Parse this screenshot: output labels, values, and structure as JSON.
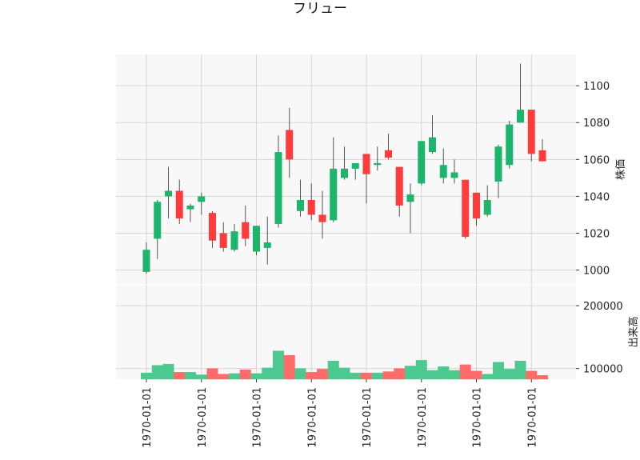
{
  "chart_data": {
    "type": "candlestick",
    "title": "フリュー",
    "price_axis_label": "株価",
    "volume_axis_label": "出来高",
    "price_ticks": [
      1000,
      1020,
      1040,
      1060,
      1080,
      1100
    ],
    "price_ylim": [
      992,
      1117
    ],
    "volume_ticks": [
      100000,
      200000
    ],
    "volume_tick_labels": [
      "100000",
      "200000"
    ],
    "volume_ylim": [
      83000,
      232000
    ],
    "x_tick_label": "1970-01-01",
    "x_tick_positions": [
      0,
      5,
      10,
      15,
      20,
      25,
      30,
      35
    ],
    "grid": true,
    "up_color": "#1db46c",
    "down_color": "#ff3b3b",
    "volume_up_color": "#4cc98e",
    "volume_down_color": "#ff6b6b",
    "candles": [
      {
        "open": 999,
        "high": 1015,
        "low": 998,
        "close": 1011,
        "volume": 93000
      },
      {
        "open": 1017,
        "high": 1038,
        "low": 1006,
        "close": 1037,
        "volume": 105000
      },
      {
        "open": 1040,
        "high": 1056,
        "low": 1028,
        "close": 1043,
        "volume": 107000
      },
      {
        "open": 1043,
        "high": 1049,
        "low": 1025,
        "close": 1028,
        "volume": 94000
      },
      {
        "open": 1033,
        "high": 1036,
        "low": 1026,
        "close": 1035,
        "volume": 94000
      },
      {
        "open": 1037,
        "high": 1042,
        "low": 1030,
        "close": 1040,
        "volume": 90000
      },
      {
        "open": 1031,
        "high": 1032,
        "low": 1012,
        "close": 1016,
        "volume": 100000
      },
      {
        "open": 1020,
        "high": 1026,
        "low": 1010,
        "close": 1012,
        "volume": 91000
      },
      {
        "open": 1011,
        "high": 1025,
        "low": 1010,
        "close": 1021,
        "volume": 92000
      },
      {
        "open": 1026,
        "high": 1035,
        "low": 1013,
        "close": 1017,
        "volume": 98000
      },
      {
        "open": 1010,
        "high": 1024,
        "low": 1008,
        "close": 1024,
        "volume": 92000
      },
      {
        "open": 1012,
        "high": 1029,
        "low": 1003,
        "close": 1015,
        "volume": 101000
      },
      {
        "open": 1025,
        "high": 1073,
        "low": 1023,
        "close": 1064,
        "volume": 128000
      },
      {
        "open": 1076,
        "high": 1088,
        "low": 1050,
        "close": 1060,
        "volume": 121000
      },
      {
        "open": 1032,
        "high": 1049,
        "low": 1029,
        "close": 1038,
        "volume": 100000
      },
      {
        "open": 1038,
        "high": 1047,
        "low": 1027,
        "close": 1030,
        "volume": 94000
      },
      {
        "open": 1030,
        "high": 1043,
        "low": 1017,
        "close": 1026,
        "volume": 99000
      },
      {
        "open": 1027,
        "high": 1072,
        "low": 1026,
        "close": 1055,
        "volume": 112000
      },
      {
        "open": 1050,
        "high": 1067,
        "low": 1049,
        "close": 1055,
        "volume": 101000
      },
      {
        "open": 1055,
        "high": 1058,
        "low": 1049,
        "close": 1058,
        "volume": 93000
      },
      {
        "open": 1063,
        "high": 1063,
        "low": 1036,
        "close": 1052,
        "volume": 93000
      },
      {
        "open": 1057,
        "high": 1067,
        "low": 1054,
        "close": 1058,
        "volume": 93000
      },
      {
        "open": 1065,
        "high": 1074,
        "low": 1060,
        "close": 1061,
        "volume": 95000
      },
      {
        "open": 1056,
        "high": 1056,
        "low": 1029,
        "close": 1035,
        "volume": 100000
      },
      {
        "open": 1037,
        "high": 1047,
        "low": 1020,
        "close": 1041,
        "volume": 104000
      },
      {
        "open": 1047,
        "high": 1070,
        "low": 1046,
        "close": 1070,
        "volume": 113000
      },
      {
        "open": 1064,
        "high": 1084,
        "low": 1063,
        "close": 1072,
        "volume": 97000
      },
      {
        "open": 1050,
        "high": 1066,
        "low": 1047,
        "close": 1057,
        "volume": 103000
      },
      {
        "open": 1050,
        "high": 1060,
        "low": 1047,
        "close": 1053,
        "volume": 97000
      },
      {
        "open": 1049,
        "high": 1049,
        "low": 1017,
        "close": 1018,
        "volume": 106000
      },
      {
        "open": 1042,
        "high": 1042,
        "low": 1024,
        "close": 1028,
        "volume": 96000
      },
      {
        "open": 1030,
        "high": 1046,
        "low": 1029,
        "close": 1038,
        "volume": 91000
      },
      {
        "open": 1048,
        "high": 1068,
        "low": 1039,
        "close": 1067,
        "volume": 110000
      },
      {
        "open": 1057,
        "high": 1081,
        "low": 1055,
        "close": 1079,
        "volume": 99000
      },
      {
        "open": 1080,
        "high": 1112,
        "low": 1080,
        "close": 1087,
        "volume": 112000
      },
      {
        "open": 1087,
        "high": 1087,
        "low": 1059,
        "close": 1063,
        "volume": 96000
      },
      {
        "open": 1065,
        "high": 1071,
        "low": 1059,
        "close": 1059,
        "volume": 89000
      }
    ]
  }
}
